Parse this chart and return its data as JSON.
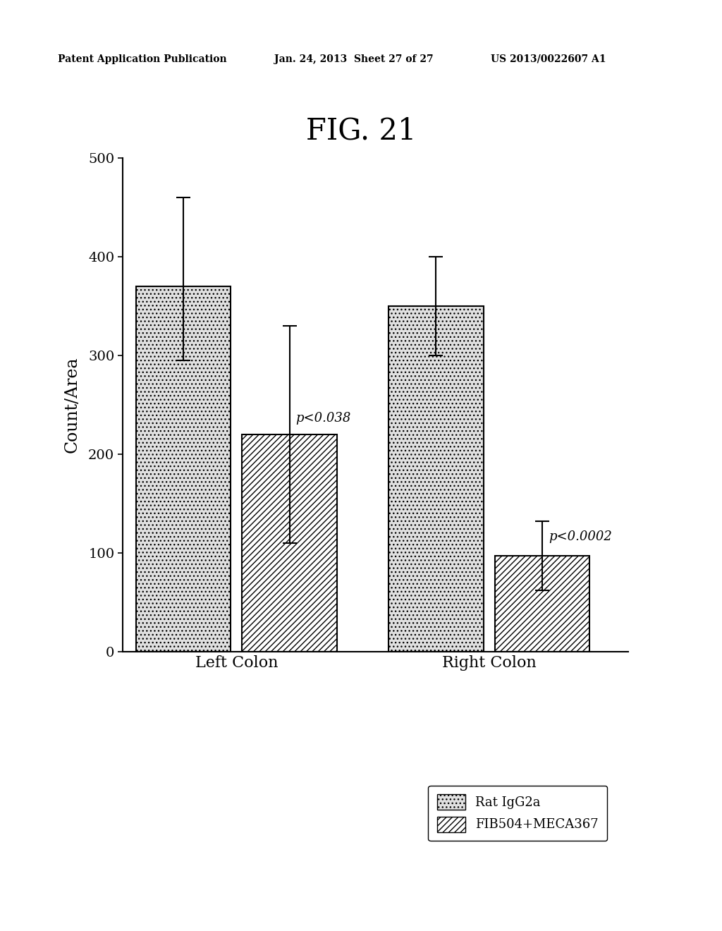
{
  "title": "FIG. 21",
  "ylabel": "Count/Area",
  "groups": [
    "Left Colon",
    "Right Colon"
  ],
  "series": [
    "Rat IgG2a",
    "FIB504+MECA367"
  ],
  "values": [
    [
      370,
      220
    ],
    [
      350,
      97
    ]
  ],
  "errors_upper": [
    [
      90,
      110
    ],
    [
      50,
      35
    ]
  ],
  "errors_lower": [
    [
      75,
      110
    ],
    [
      50,
      35
    ]
  ],
  "p_values": [
    "p<0.038",
    "p<0.0002"
  ],
  "ylim": [
    0,
    500
  ],
  "yticks": [
    0,
    100,
    200,
    300,
    400,
    500
  ],
  "bar_width": 0.75,
  "background_color": "#ffffff",
  "title_fontsize": 30,
  "axis_label_fontsize": 17,
  "tick_fontsize": 14,
  "annotation_fontsize": 13,
  "legend_fontsize": 13,
  "header_left": "Patent Application Publication",
  "header_mid": "Jan. 24, 2013  Sheet 27 of 27",
  "header_right": "US 2013/0022607 A1",
  "header_fontsize": 10
}
